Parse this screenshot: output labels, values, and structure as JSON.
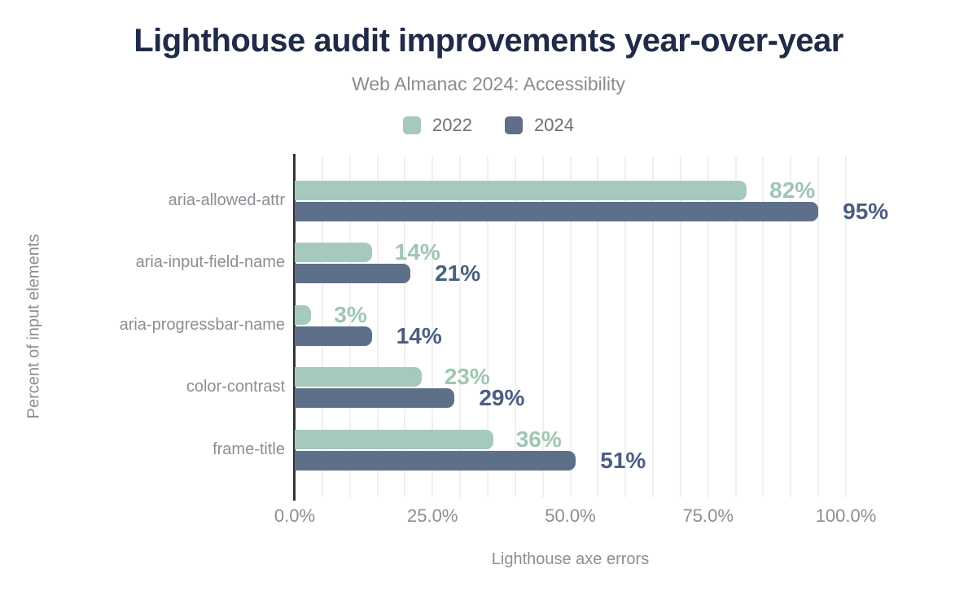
{
  "header": {
    "title": "Lighthouse audit improvements year-over-year",
    "subtitle": "Web Almanac 2024: Accessibility"
  },
  "chart_data": {
    "type": "bar",
    "orientation": "horizontal",
    "title": "Lighthouse audit improvements year-over-year",
    "subtitle": "Web Almanac 2024: Accessibility",
    "xlabel": "Lighthouse axe errors",
    "ylabel": "Percent of input elements",
    "categories": [
      "aria-allowed-attr",
      "aria-input-field-name",
      "aria-progressbar-name",
      "color-contrast",
      "frame-title"
    ],
    "series": [
      {
        "name": "2022",
        "color": "#a5c9ba",
        "label_color": "#9fc5b3",
        "values": [
          82,
          14,
          3,
          23,
          36
        ]
      },
      {
        "name": "2024",
        "color": "#5e6f89",
        "label_color": "#4a5f80",
        "values": [
          95,
          21,
          14,
          29,
          51
        ]
      }
    ],
    "value_suffix": "%",
    "xlim": [
      0,
      100
    ],
    "grid_step_percent": 5,
    "legend_position": "top",
    "xticks": [
      {
        "value": 0,
        "label": "0.0%"
      },
      {
        "value": 25,
        "label": "25.0%"
      },
      {
        "value": 50,
        "label": "50.0%"
      },
      {
        "value": 75,
        "label": "75.0%"
      },
      {
        "value": 100,
        "label": "100.0%"
      }
    ]
  }
}
